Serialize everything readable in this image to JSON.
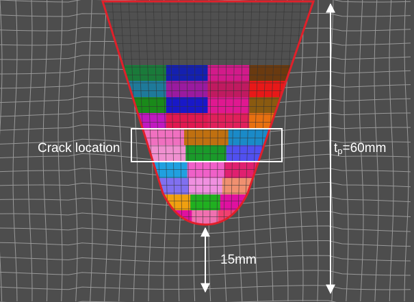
{
  "labels": {
    "crack": "Crack location",
    "thickness": {
      "symbol": "t",
      "subscript": "p",
      "rest": "=60mm"
    },
    "depth": "15mm"
  }
}
